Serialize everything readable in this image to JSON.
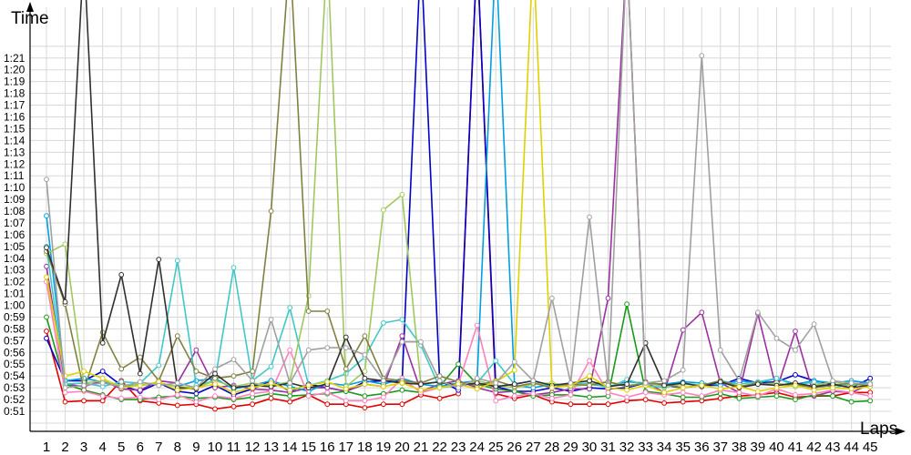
{
  "chart_data": {
    "type": "line",
    "ylabel": "Time",
    "xlabel": "Laps",
    "y_unit": "seconds",
    "ylim": [
      50,
      85
    ],
    "y_ticks": [
      "0:51",
      "0:52",
      "0:53",
      "0:54",
      "0:55",
      "0:56",
      "0:57",
      "0:58",
      "0:59",
      "1:00",
      "1:01",
      "1:02",
      "1:03",
      "1:04",
      "1:05",
      "1:06",
      "1:07",
      "1:08",
      "1:09",
      "1:10",
      "1:11",
      "1:12",
      "1:13",
      "1:14",
      "1:15",
      "1:16",
      "1:17",
      "1:18",
      "1:19",
      "1:20",
      "1:21"
    ],
    "y_tick_values": [
      51,
      52,
      53,
      54,
      55,
      56,
      57,
      58,
      59,
      60,
      61,
      62,
      63,
      64,
      65,
      66,
      67,
      68,
      69,
      70,
      71,
      72,
      73,
      74,
      75,
      76,
      77,
      78,
      79,
      80,
      81
    ],
    "x": [
      1,
      2,
      3,
      4,
      5,
      6,
      7,
      8,
      9,
      10,
      11,
      12,
      13,
      14,
      15,
      16,
      17,
      18,
      19,
      20,
      21,
      22,
      23,
      24,
      25,
      26,
      27,
      28,
      29,
      30,
      31,
      32,
      33,
      34,
      35,
      36,
      37,
      38,
      39,
      40,
      41,
      42,
      43,
      44,
      45
    ],
    "grid": true,
    "legend": "none",
    "series": [
      {
        "color": "#e00000",
        "values": [
          57.8,
          51.8,
          51.9,
          51.9,
          53.6,
          51.9,
          51.7,
          51.5,
          51.6,
          51.2,
          51.4,
          51.6,
          52.1,
          51.8,
          52.4,
          51.6,
          51.6,
          51.3,
          51.6,
          51.6,
          52.4,
          52.1,
          52.5,
          90,
          52.5,
          52.1,
          52.4,
          51.8,
          51.6,
          51.6,
          51.6,
          51.9,
          52.0,
          51.7,
          51.8,
          51.9,
          52.1,
          52.3,
          52.4,
          52.6,
          52.2,
          52.3,
          52.3,
          52.6,
          52.6
        ]
      },
      {
        "color": "#0000c8",
        "values": [
          57.2,
          53.6,
          53.6,
          54.4,
          53.2,
          52.7,
          53.4,
          52.7,
          52.5,
          53.2,
          52.4,
          52.9,
          53.6,
          52.7,
          53.3,
          53.0,
          52.7,
          53.5,
          53.6,
          53.5,
          90,
          53.6,
          52.8,
          90,
          53.1,
          52.7,
          52.7,
          53.0,
          52.7,
          53.0,
          52.9,
          53.0,
          53.4,
          53.2,
          53.0,
          53.2,
          53.2,
          53.8,
          53.4,
          53.5,
          54.1,
          53.6,
          53.3,
          53.0,
          53.8
        ]
      },
      {
        "color": "#9b30a0",
        "values": [
          63.3,
          53.3,
          53.1,
          53.6,
          52.9,
          52.8,
          53.6,
          53.4,
          56.2,
          53.0,
          53.2,
          52.9,
          52.8,
          52.6,
          53.0,
          53.0,
          52.7,
          53.3,
          53.1,
          57.4,
          52.7,
          53.3,
          53.6,
          53.0,
          52.6,
          52.7,
          52.4,
          52.6,
          52.9,
          52.9,
          60.6,
          90,
          53.5,
          52.6,
          57.9,
          59.4,
          53.4,
          52.6,
          59.3,
          52.8,
          57.8,
          52.3,
          52.7,
          52.6,
          53.3
        ]
      },
      {
        "color": "#1a9a1a",
        "values": [
          59.0,
          53.3,
          52.8,
          52.4,
          52.0,
          52.0,
          52.2,
          52.3,
          52.1,
          52.2,
          52.0,
          52.2,
          52.5,
          52.3,
          52.4,
          52.5,
          52.7,
          52.3,
          52.5,
          52.8,
          52.6,
          53.1,
          55.0,
          53.3,
          52.9,
          52.7,
          52.3,
          52.4,
          52.4,
          52.2,
          52.3,
          60.1,
          52.7,
          52.5,
          52.2,
          52.2,
          52.5,
          52.1,
          52.2,
          52.3,
          52.0,
          52.4,
          52.3,
          51.8,
          51.9
        ]
      },
      {
        "color": "#00a0e0",
        "values": [
          67.6,
          53.6,
          53.8,
          53.5,
          53.1,
          53.2,
          53.4,
          53.1,
          53.6,
          53.8,
          52.9,
          53.2,
          53.6,
          53.1,
          52.7,
          53.4,
          53.2,
          53.6,
          53.3,
          53.8,
          53.3,
          53.1,
          53.4,
          53.6,
          90,
          53.2,
          53.0,
          53.3,
          53.1,
          53.3,
          53.1,
          53.5,
          53.4,
          53.3,
          53.5,
          53.4,
          53.2,
          53.6,
          53.4,
          53.8,
          53.3,
          53.6,
          53.4,
          53.6,
          53.4
        ]
      },
      {
        "color": "#ff80c0",
        "values": [
          62.0,
          52.6,
          52.7,
          52.3,
          52.1,
          52.2,
          52.0,
          52.4,
          51.8,
          52.3,
          52.1,
          52.5,
          52.7,
          56.2,
          52.3,
          52.6,
          51.9,
          51.9,
          52.2,
          53.8,
          52.6,
          53.0,
          53.3,
          58.3,
          51.9,
          52.3,
          52.5,
          52.1,
          52.4,
          55.3,
          52.6,
          52.2,
          52.6,
          52.4,
          52.6,
          52.3,
          52.8,
          52.6,
          52.3,
          52.9,
          52.4,
          52.5,
          52.8,
          52.6,
          52.3
        ]
      },
      {
        "color": "#40c8c8",
        "values": [
          65.0,
          53.3,
          53.4,
          53.1,
          53.5,
          53.4,
          54.9,
          63.8,
          53.2,
          53.6,
          63.2,
          53.6,
          54.8,
          59.8,
          53.2,
          53.6,
          54.2,
          55.6,
          58.5,
          58.8,
          56.6,
          53.0,
          53.2,
          53.4,
          55.3,
          53.3,
          53.6,
          53.0,
          53.3,
          53.4,
          53.0,
          53.7,
          53.2,
          53.0,
          53.4,
          53.2,
          53.6,
          53.3,
          53.5,
          53.8,
          53.2,
          53.5,
          53.0,
          53.3,
          53.2
        ]
      },
      {
        "color": "#a0c860",
        "values": [
          64.4,
          65.2,
          53.4,
          53.6,
          53.2,
          53.3,
          53.4,
          53.1,
          53.0,
          53.6,
          53.1,
          53.4,
          53.2,
          53.5,
          60.8,
          90,
          53.1,
          54.4,
          68.1,
          69.4,
          53.3,
          53.5,
          53.2,
          53.6,
          53.2,
          53.0,
          53.3,
          53.4,
          53.1,
          53.3,
          53.5,
          53.2,
          53.4,
          53.1,
          53.3,
          53.2,
          53.6,
          53.0,
          53.3,
          53.4,
          53.1,
          53.2,
          53.5,
          53.2,
          53.4
        ]
      },
      {
        "color": "#808040",
        "values": [
          64.6,
          60.1,
          52.8,
          57.7,
          54.6,
          55.6,
          53.6,
          57.4,
          54.4,
          53.8,
          54.0,
          54.4,
          68.0,
          90,
          59.5,
          59.5,
          54.6,
          57.4,
          53.8,
          53.6,
          53.4,
          54.0,
          53.5,
          53.2,
          53.6,
          53.1,
          53.4,
          53.0,
          53.3,
          53.2,
          53.5,
          53.1,
          53.4,
          53.3,
          53.0,
          53.2,
          53.6,
          53.1,
          53.4,
          53.2,
          53.3,
          53.0,
          53.2,
          53.4,
          53.1
        ]
      },
      {
        "color": "#303030",
        "values": [
          64.9,
          60.3,
          90,
          56.8,
          62.6,
          54.2,
          63.9,
          53.0,
          52.9,
          54.2,
          53.0,
          53.2,
          53.1,
          53.4,
          53.0,
          53.3,
          57.3,
          53.8,
          53.6,
          53.4,
          53.3,
          53.5,
          53.2,
          53.4,
          53.1,
          53.3,
          53.6,
          53.2,
          53.4,
          53.6,
          53.1,
          53.3,
          56.8,
          53.2,
          53.4,
          53.1,
          53.5,
          53.0,
          53.3,
          53.2,
          53.4,
          53.1,
          53.3,
          53.0,
          53.2
        ]
      },
      {
        "color": "#e0d000",
        "values": [
          62.4,
          54.0,
          54.4,
          53.8,
          53.0,
          53.2,
          53.5,
          52.8,
          53.0,
          53.3,
          52.6,
          53.0,
          53.4,
          52.8,
          53.2,
          53.5,
          52.9,
          53.3,
          53.1,
          53.4,
          52.8,
          53.0,
          53.3,
          52.9,
          53.5,
          54.5,
          90,
          53.0,
          53.2,
          54.0,
          53.0,
          52.8,
          53.2,
          52.6,
          53.0,
          53.2,
          52.9,
          53.1,
          52.7,
          53.0,
          53.2,
          52.8,
          53.0,
          52.9,
          53.1
        ]
      },
      {
        "color": "#a0a0a0",
        "values": [
          70.7,
          53.0,
          53.2,
          53.4,
          53.1,
          53.5,
          53.2,
          53.4,
          53.0,
          54.6,
          55.4,
          53.6,
          58.8,
          53.4,
          56.2,
          56.4,
          56.4,
          55.8,
          53.6,
          56.9,
          56.9,
          53.6,
          53.0,
          53.8,
          53.4,
          55.2,
          53.6,
          60.6,
          53.4,
          67.5,
          53.2,
          90,
          53.4,
          53.6,
          54.5,
          81.2,
          56.2,
          53.6,
          59.4,
          57.2,
          56.2,
          58.4,
          53.6,
          53.4,
          53.3
        ]
      }
    ]
  }
}
